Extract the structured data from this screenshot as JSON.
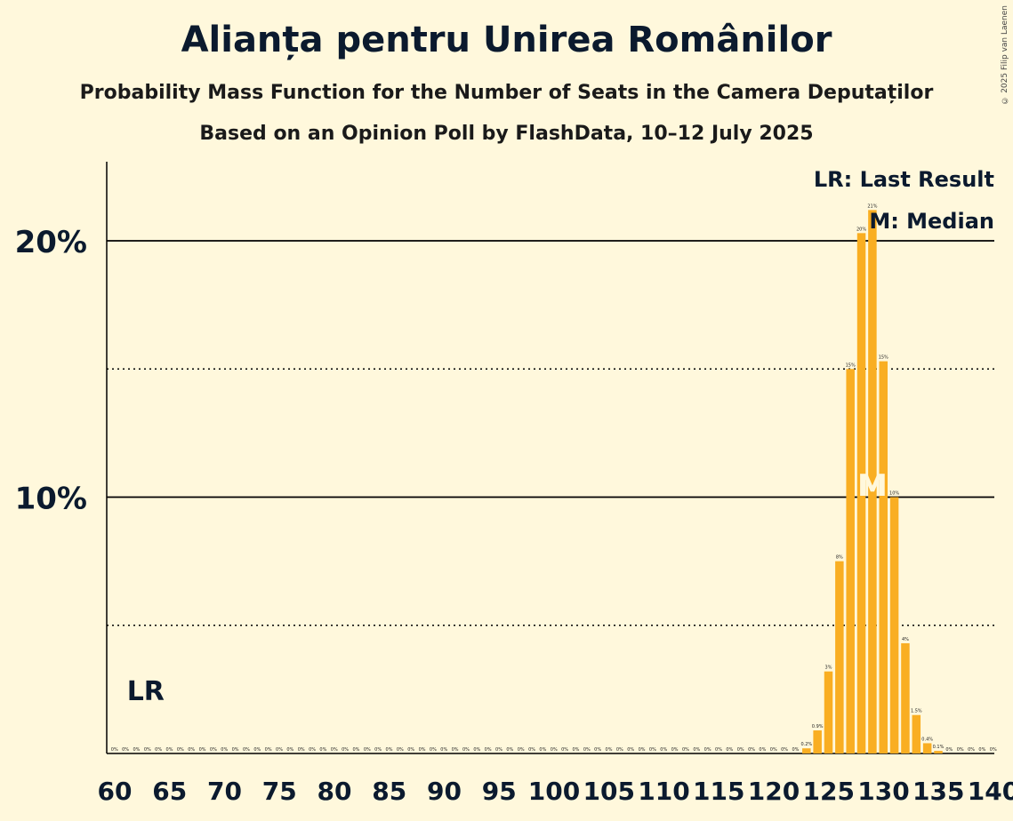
{
  "title": "Alianța pentru Unirea Românilor",
  "subtitle": "Probability Mass Function for the Number of Seats in the Camera Deputaților",
  "subtitle2": "Based on an Opinion Poll by FlashData, 10–12 July 2025",
  "copyright": "© 2025 Filip van Laenen",
  "legend": {
    "lr": "LR: Last Result",
    "median": "M: Median"
  },
  "markers": {
    "lr_label": "LR",
    "median_label": "M"
  },
  "colors": {
    "bar": "#f9ae22",
    "background": "#fff8dc",
    "text": "#0b1a2e"
  },
  "chart_data": {
    "type": "bar",
    "x_ticks": [
      "60",
      "65",
      "70",
      "75",
      "80",
      "85",
      "90",
      "95",
      "100",
      "105",
      "110",
      "115",
      "120",
      "125",
      "130",
      "135",
      "140"
    ],
    "y_ticks": [
      {
        "value": 10,
        "label": "10%"
      },
      {
        "value": 20,
        "label": "20%"
      }
    ],
    "dotted_lines": [
      5,
      15
    ],
    "ylim": [
      0,
      23
    ],
    "xlim": [
      60,
      140
    ],
    "last_result": 62,
    "median": 129,
    "seats": [
      60,
      61,
      62,
      63,
      64,
      65,
      66,
      67,
      68,
      69,
      70,
      71,
      72,
      73,
      74,
      75,
      76,
      77,
      78,
      79,
      80,
      81,
      82,
      83,
      84,
      85,
      86,
      87,
      88,
      89,
      90,
      91,
      92,
      93,
      94,
      95,
      96,
      97,
      98,
      99,
      100,
      101,
      102,
      103,
      104,
      105,
      106,
      107,
      108,
      109,
      110,
      111,
      112,
      113,
      114,
      115,
      116,
      117,
      118,
      119,
      120,
      121,
      122,
      123,
      124,
      125,
      126,
      127,
      128,
      129,
      130,
      131,
      132,
      133,
      134,
      135,
      136,
      137,
      138,
      139,
      140
    ],
    "values": [
      0,
      0,
      0,
      0,
      0,
      0,
      0,
      0,
      0,
      0,
      0,
      0,
      0,
      0,
      0,
      0,
      0,
      0,
      0,
      0,
      0,
      0,
      0,
      0,
      0,
      0,
      0,
      0,
      0,
      0,
      0,
      0,
      0,
      0,
      0,
      0,
      0,
      0,
      0,
      0,
      0,
      0,
      0,
      0,
      0,
      0,
      0,
      0,
      0,
      0,
      0,
      0,
      0,
      0,
      0,
      0,
      0,
      0,
      0,
      0,
      0,
      0,
      0,
      0.2,
      0.9,
      3.2,
      7.5,
      15,
      20.3,
      21.2,
      15.3,
      10,
      4.3,
      1.5,
      0.4,
      0.1,
      0,
      0,
      0,
      0,
      0
    ],
    "value_labels": [
      "0%",
      "0%",
      "0%",
      "0%",
      "0%",
      "0%",
      "0%",
      "0%",
      "0%",
      "0%",
      "0%",
      "0%",
      "0%",
      "0%",
      "0%",
      "0%",
      "0%",
      "0%",
      "0%",
      "0%",
      "0%",
      "0%",
      "0%",
      "0%",
      "0%",
      "0%",
      "0%",
      "0%",
      "0%",
      "0%",
      "0%",
      "0%",
      "0%",
      "0%",
      "0%",
      "0%",
      "0%",
      "0%",
      "0%",
      "0%",
      "0%",
      "0%",
      "0%",
      "0%",
      "0%",
      "0%",
      "0%",
      "0%",
      "0%",
      "0%",
      "0%",
      "0%",
      "0%",
      "0%",
      "0%",
      "0%",
      "0%",
      "0%",
      "0%",
      "0%",
      "0%",
      "0%",
      "0%",
      "0.2%",
      "0.9%",
      "3%",
      "8%",
      "15%",
      "20%",
      "21%",
      "15%",
      "10%",
      "4%",
      "1.5%",
      "0.4%",
      "0.1%",
      "0%",
      "0%",
      "0%",
      "0%",
      "0%"
    ]
  }
}
